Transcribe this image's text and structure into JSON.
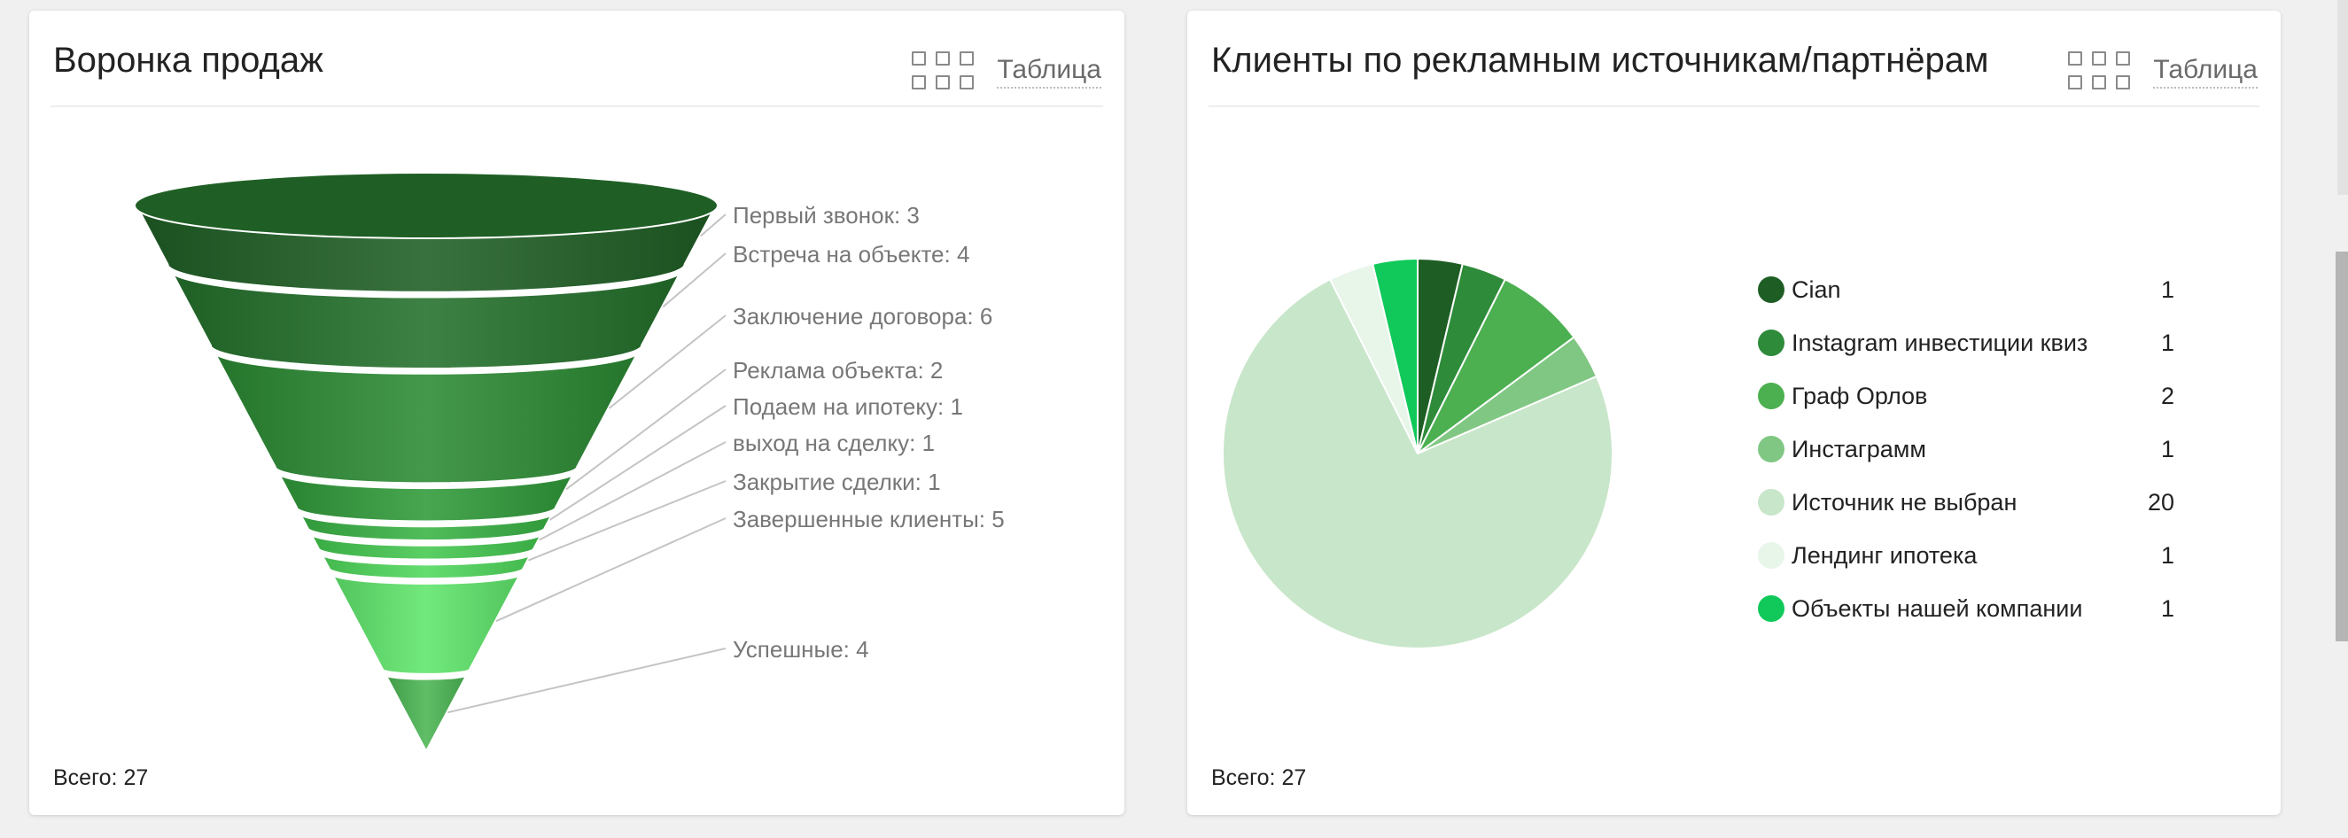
{
  "funnel_card": {
    "title": "Воронка продаж",
    "table_label": "Таблица",
    "total_label": "Всего: 27"
  },
  "pie_card": {
    "title": "Клиенты по рекламным источникам/партнёрам",
    "table_label": "Таблица",
    "total_label": "Всего: 27"
  },
  "icons": {
    "view": "grid-icon"
  },
  "chart_data": [
    {
      "type": "funnel",
      "title": "Воронка продаж",
      "categories": [
        "Первый звонок",
        "Встреча на объекте",
        "Заключение договора",
        "Реклама объекта",
        "Подаем на ипотеку",
        "выход на сделку",
        "Закрытие сделки",
        "Завершенные клиенты",
        "Успешные"
      ],
      "values": [
        3,
        4,
        6,
        2,
        1,
        1,
        1,
        5,
        4
      ],
      "labels": [
        "Первый звонок: 3",
        "Встреча на объекте: 4",
        "Заключение договора: 6",
        "Реклама объекта: 2",
        "Подаем на ипотеку: 1",
        "выход на сделку: 1",
        "Закрытие сделки: 1",
        "Завершенные клиенты: 5",
        "Успешные: 4"
      ],
      "colors": [
        "#1e5e24",
        "#23702a",
        "#2a8a32",
        "#2f9a38",
        "#38b343",
        "#43c84f",
        "#4fd85b",
        "#5fe66b",
        "#4ab552"
      ]
    },
    {
      "type": "pie",
      "title": "Клиенты по рекламным источникам/партнёрам",
      "series": [
        {
          "name": "Cian",
          "value": 1,
          "color": "#1e5e24"
        },
        {
          "name": "Instagram инвестиции квиз",
          "value": 1,
          "color": "#2e8b3a"
        },
        {
          "name": "Граф Орлов",
          "value": 2,
          "color": "#4caf50"
        },
        {
          "name": "Инстаграмм",
          "value": 1,
          "color": "#81c784"
        },
        {
          "name": "Источник не выбран",
          "value": 20,
          "color": "#c8e6c9"
        },
        {
          "name": "Лендинг ипотека",
          "value": 1,
          "color": "#e8f5e9"
        },
        {
          "name": "Объекты нашей компании",
          "value": 1,
          "color": "#10c95a"
        }
      ]
    }
  ]
}
